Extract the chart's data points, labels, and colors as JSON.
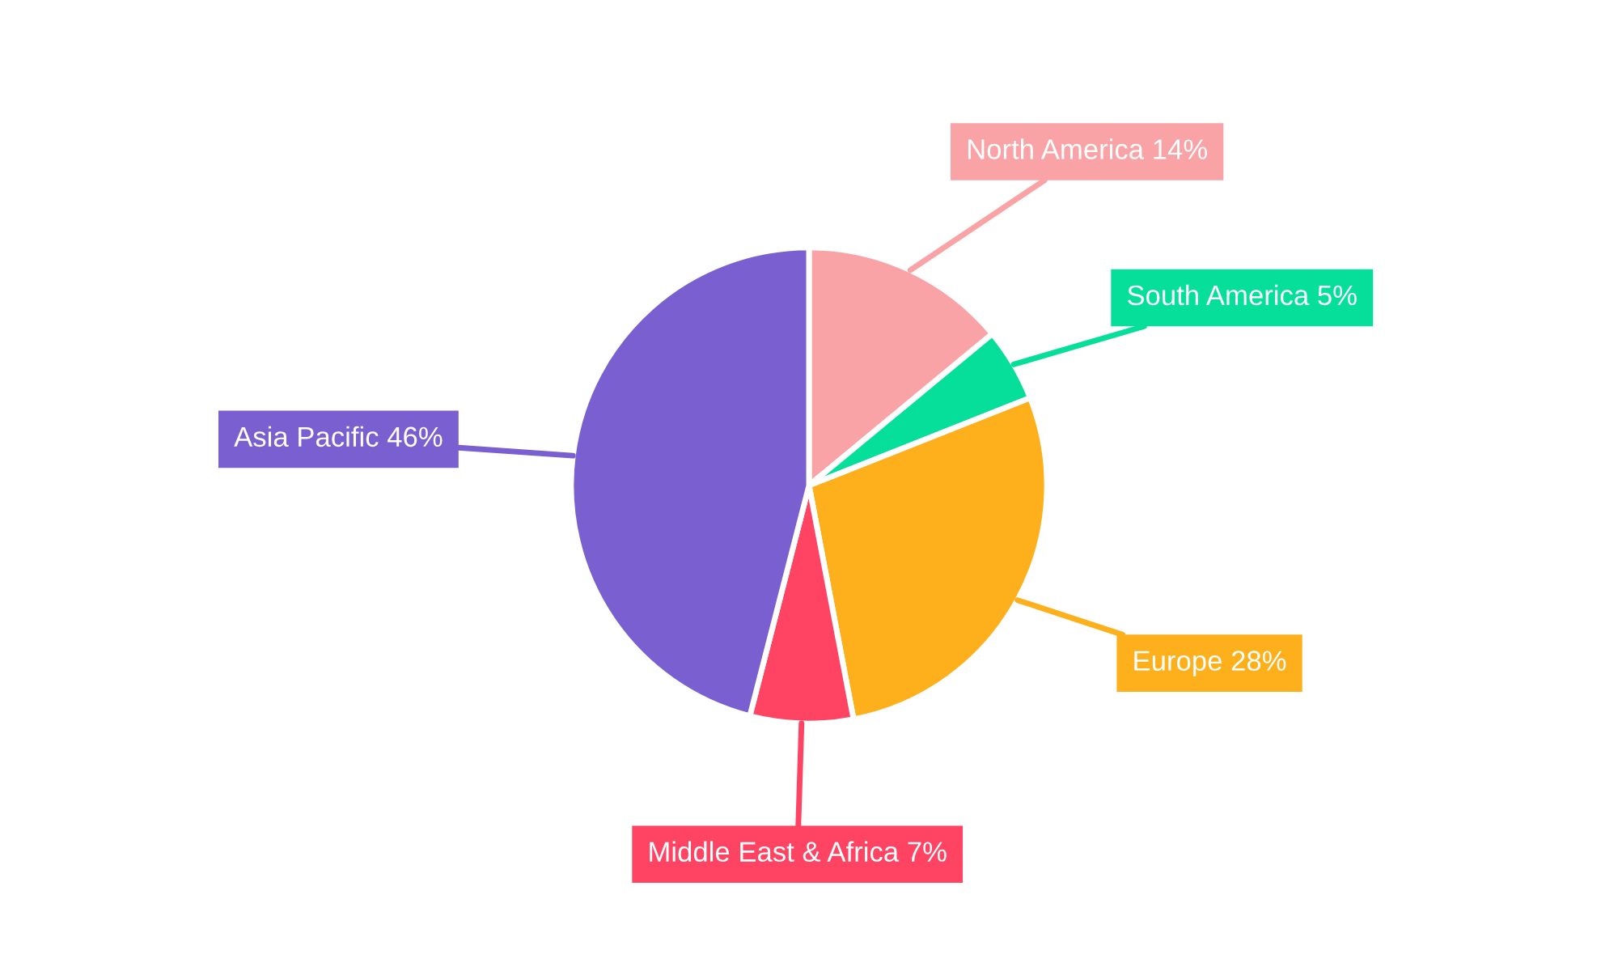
{
  "chart_data": {
    "type": "pie",
    "categories": [
      "North America",
      "South America",
      "Europe",
      "Middle East & Africa",
      "Asia Pacific"
    ],
    "values": [
      14,
      5,
      28,
      7,
      46
    ],
    "value_labels": [
      "14%",
      "5%",
      "28%",
      "7%",
      "46%"
    ],
    "colors": [
      "#f9a3a6",
      "#05df9a",
      "#fdb01b",
      "#ff4463",
      "#7a5fd1"
    ],
    "legend": false
  }
}
